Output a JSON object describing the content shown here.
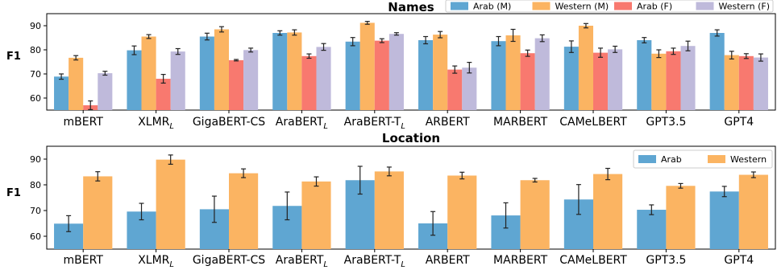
{
  "chart_data": [
    {
      "type": "bar",
      "title": "Names",
      "ylabel": "F1",
      "ylim": [
        55,
        95
      ],
      "yticks": [
        60,
        70,
        80,
        90
      ],
      "legend_position": "top-right",
      "categories": [
        "mBERT",
        "XLMR",
        "GigaBERT-CS",
        "AraBERT",
        "AraBERT-T",
        "ARBERT",
        "MARBERT",
        "CAMeLBERT",
        "GPT3.5",
        "GPT4"
      ],
      "category_subscripts": [
        "",
        "L",
        "",
        "L",
        "L",
        "",
        "",
        "",
        "",
        ""
      ],
      "series": [
        {
          "name": "Arab (M)",
          "color": "#5fa6d2",
          "values": [
            68.9,
            79.8,
            85.5,
            87.0,
            83.4,
            84.0,
            83.6,
            81.3,
            84.0,
            87.0
          ],
          "errors": [
            1.1,
            1.8,
            1.4,
            0.9,
            1.7,
            1.5,
            1.9,
            2.4,
            1.1,
            1.3
          ]
        },
        {
          "name": "Western (M)",
          "color": "#fbb462",
          "values": [
            76.7,
            85.5,
            88.5,
            87.2,
            91.2,
            86.3,
            86.0,
            90.0,
            78.4,
            77.8
          ],
          "errors": [
            0.9,
            0.8,
            1.1,
            1.1,
            0.6,
            1.3,
            2.5,
            0.9,
            1.6,
            1.6
          ]
        },
        {
          "name": "Arab (F)",
          "color": "#f8796f",
          "values": [
            57.0,
            68.0,
            75.7,
            77.4,
            83.8,
            71.8,
            78.6,
            78.8,
            79.4,
            77.4
          ],
          "errors": [
            1.8,
            1.8,
            0.3,
            0.9,
            0.8,
            1.5,
            1.3,
            1.9,
            1.3,
            1.0
          ]
        },
        {
          "name": "Western (F)",
          "color": "#bfbadb",
          "values": [
            70.3,
            79.3,
            79.9,
            81.2,
            86.6,
            72.6,
            84.8,
            80.2,
            81.6,
            76.8
          ],
          "errors": [
            0.8,
            1.2,
            0.8,
            1.4,
            0.5,
            2.2,
            1.4,
            1.3,
            2.0,
            1.5
          ]
        }
      ]
    },
    {
      "type": "bar",
      "title": "Location",
      "ylabel": "F1",
      "ylim": [
        55,
        95
      ],
      "yticks": [
        60,
        70,
        80,
        90
      ],
      "legend_position": "top-right",
      "categories": [
        "mBERT",
        "XLMR",
        "GigaBERT-CS",
        "AraBERT",
        "AraBERT-T",
        "ARBERT",
        "MARBERT",
        "CAMeLBERT",
        "GPT3.5",
        "GPT4"
      ],
      "category_subscripts": [
        "",
        "L",
        "",
        "L",
        "L",
        "",
        "",
        "",
        "",
        ""
      ],
      "series": [
        {
          "name": "Arab",
          "color": "#5fa6d2",
          "values": [
            64.9,
            69.6,
            70.5,
            71.8,
            81.8,
            65.0,
            68.1,
            74.3,
            70.3,
            77.4
          ],
          "errors": [
            3.1,
            3.2,
            5.1,
            5.4,
            5.4,
            4.6,
            4.9,
            5.8,
            1.9,
            2.0
          ]
        },
        {
          "name": "Western",
          "color": "#fbb462",
          "values": [
            83.3,
            89.8,
            84.5,
            81.3,
            85.2,
            83.6,
            81.8,
            84.2,
            79.6,
            83.9
          ],
          "errors": [
            1.8,
            1.8,
            1.7,
            1.8,
            1.7,
            1.3,
            0.7,
            2.2,
            0.9,
            1.1
          ]
        }
      ]
    }
  ]
}
